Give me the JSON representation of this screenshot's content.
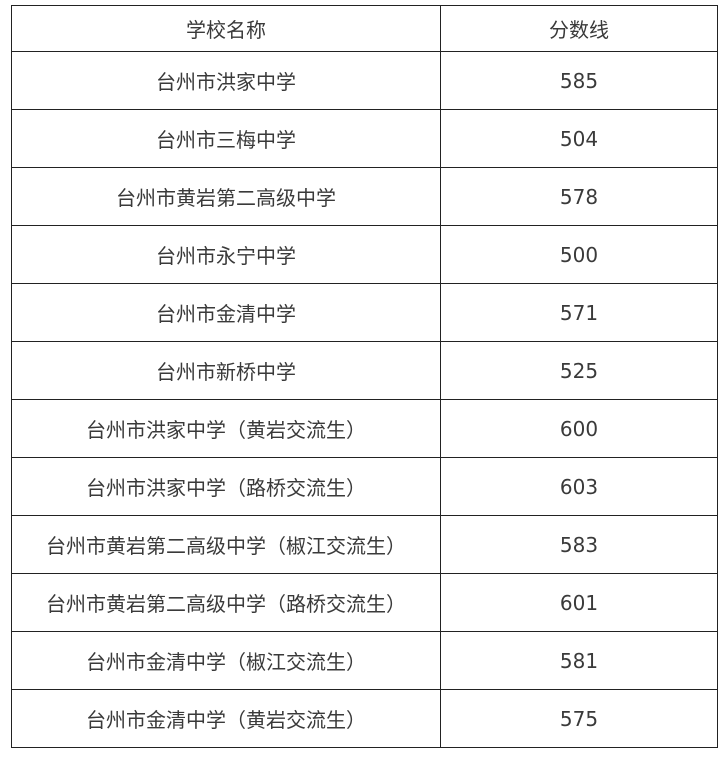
{
  "table": {
    "headers": [
      "学校名称",
      "分数线"
    ],
    "rows": [
      {
        "school": "台州市洪家中学",
        "score": "585"
      },
      {
        "school": "台州市三梅中学",
        "score": "504"
      },
      {
        "school": "台州市黄岩第二高级中学",
        "score": "578"
      },
      {
        "school": "台州市永宁中学",
        "score": "500"
      },
      {
        "school": "台州市金清中学",
        "score": "571"
      },
      {
        "school": "台州市新桥中学",
        "score": "525"
      },
      {
        "school": "台州市洪家中学（黄岩交流生）",
        "score": "600"
      },
      {
        "school": "台州市洪家中学（路桥交流生）",
        "score": "603"
      },
      {
        "school": "台州市黄岩第二高级中学（椒江交流生）",
        "score": "583"
      },
      {
        "school": "台州市黄岩第二高级中学（路桥交流生）",
        "score": "601"
      },
      {
        "school": "台州市金清中学（椒江交流生）",
        "score": "581"
      },
      {
        "school": "台州市金清中学（黄岩交流生）",
        "score": "575"
      }
    ]
  }
}
